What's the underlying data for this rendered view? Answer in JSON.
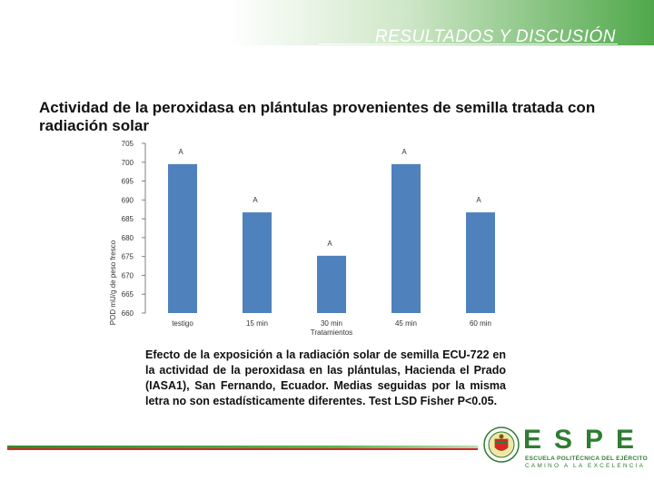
{
  "header": {
    "title": "RESULTADOS Y DISCUSIÓN"
  },
  "slide": {
    "title": "Actividad de la peroxidasa en plántulas provenientes de semilla tratada con radiación solar"
  },
  "caption": "Efecto de la exposición a la radiación solar de semilla ECU-722 en la actividad de la peroxidasa en las plántulas, Hacienda el Prado (IASA1), San Fernando, Ecuador. Medias seguidas por la misma letra no son estadísticamente diferentes. Test LSD Fisher P<0.05.",
  "logo": {
    "text": "ESPE",
    "line1": "ESCUELA POLITÉCNICA DEL EJÉRCITO",
    "line2": "CAMINO A LA EXCELENCIA"
  },
  "chart_data": {
    "type": "bar",
    "categories": [
      "testigo",
      "15 min",
      "30 min",
      "45 min",
      "60 min"
    ],
    "values": [
      699.5,
      686.7,
      675.2,
      699.5,
      686.7
    ],
    "letters": [
      "A",
      "A",
      "A",
      "A",
      "A"
    ],
    "xlabel": "Tratamientos",
    "ylabel": "POD mU/g de peso fresco",
    "ylim": [
      660,
      705
    ],
    "yticks": [
      660,
      665,
      670,
      675,
      680,
      685,
      690,
      695,
      700,
      705
    ],
    "grid": false,
    "colors": {
      "bar": "#4f81bd",
      "axis": "#7f7f7f"
    }
  }
}
